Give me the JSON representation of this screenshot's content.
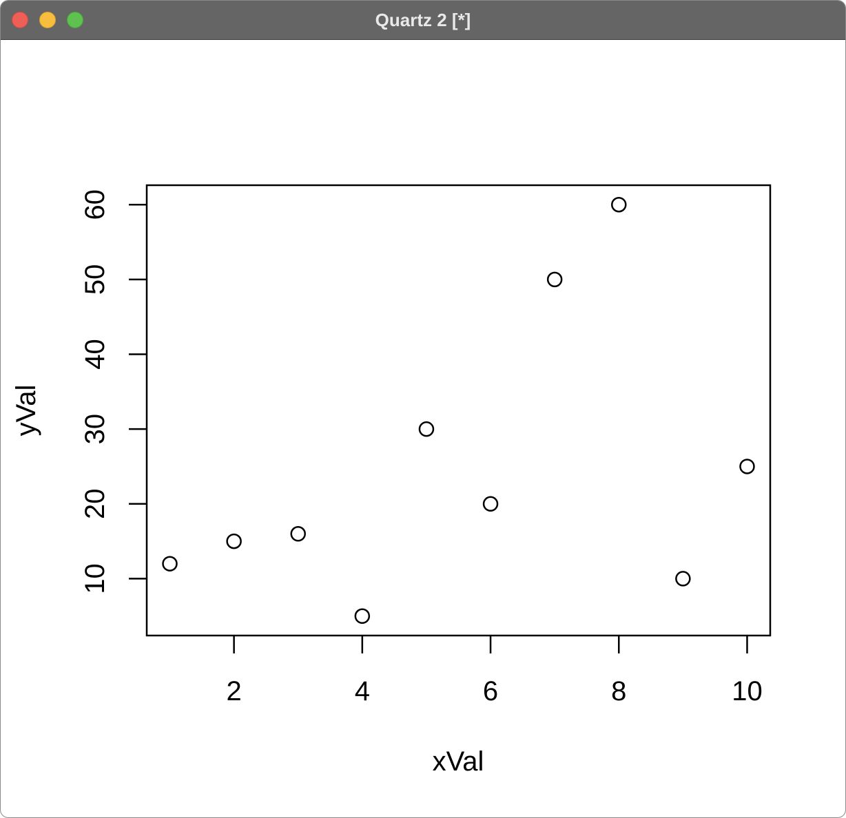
{
  "window": {
    "title": "Quartz 2 [*]"
  },
  "colors": {
    "titlebar": "#656565",
    "close": "#ee5f58",
    "minimize": "#f7bd3f",
    "maximize": "#5ec150",
    "ink": "#000000"
  },
  "chart_data": {
    "type": "scatter",
    "title": "",
    "xlabel": "xVal",
    "ylabel": "yVal",
    "x": [
      1,
      2,
      3,
      4,
      5,
      6,
      7,
      8,
      9,
      10
    ],
    "y": [
      12,
      15,
      16,
      5,
      30,
      20,
      50,
      60,
      10,
      25
    ],
    "xlim": [
      0.64,
      10.36
    ],
    "ylim": [
      2.4,
      62.6
    ],
    "xticks": [
      2,
      4,
      6,
      8,
      10
    ],
    "yticks": [
      10,
      20,
      30,
      40,
      50,
      60
    ],
    "marker": "open-circle",
    "grid": false,
    "legend": "none"
  }
}
